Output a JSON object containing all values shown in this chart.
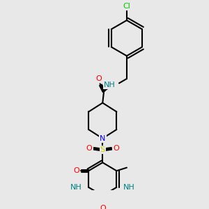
{
  "bg_color": "#e8e8e8",
  "bond_color": "#000000",
  "bond_lw": 1.5,
  "atom_colors": {
    "O": "#ff0000",
    "N": "#0000ff",
    "S": "#cccc00",
    "Cl": "#00cc00",
    "C": "#000000",
    "NH": "#008080"
  },
  "font_size": 8
}
